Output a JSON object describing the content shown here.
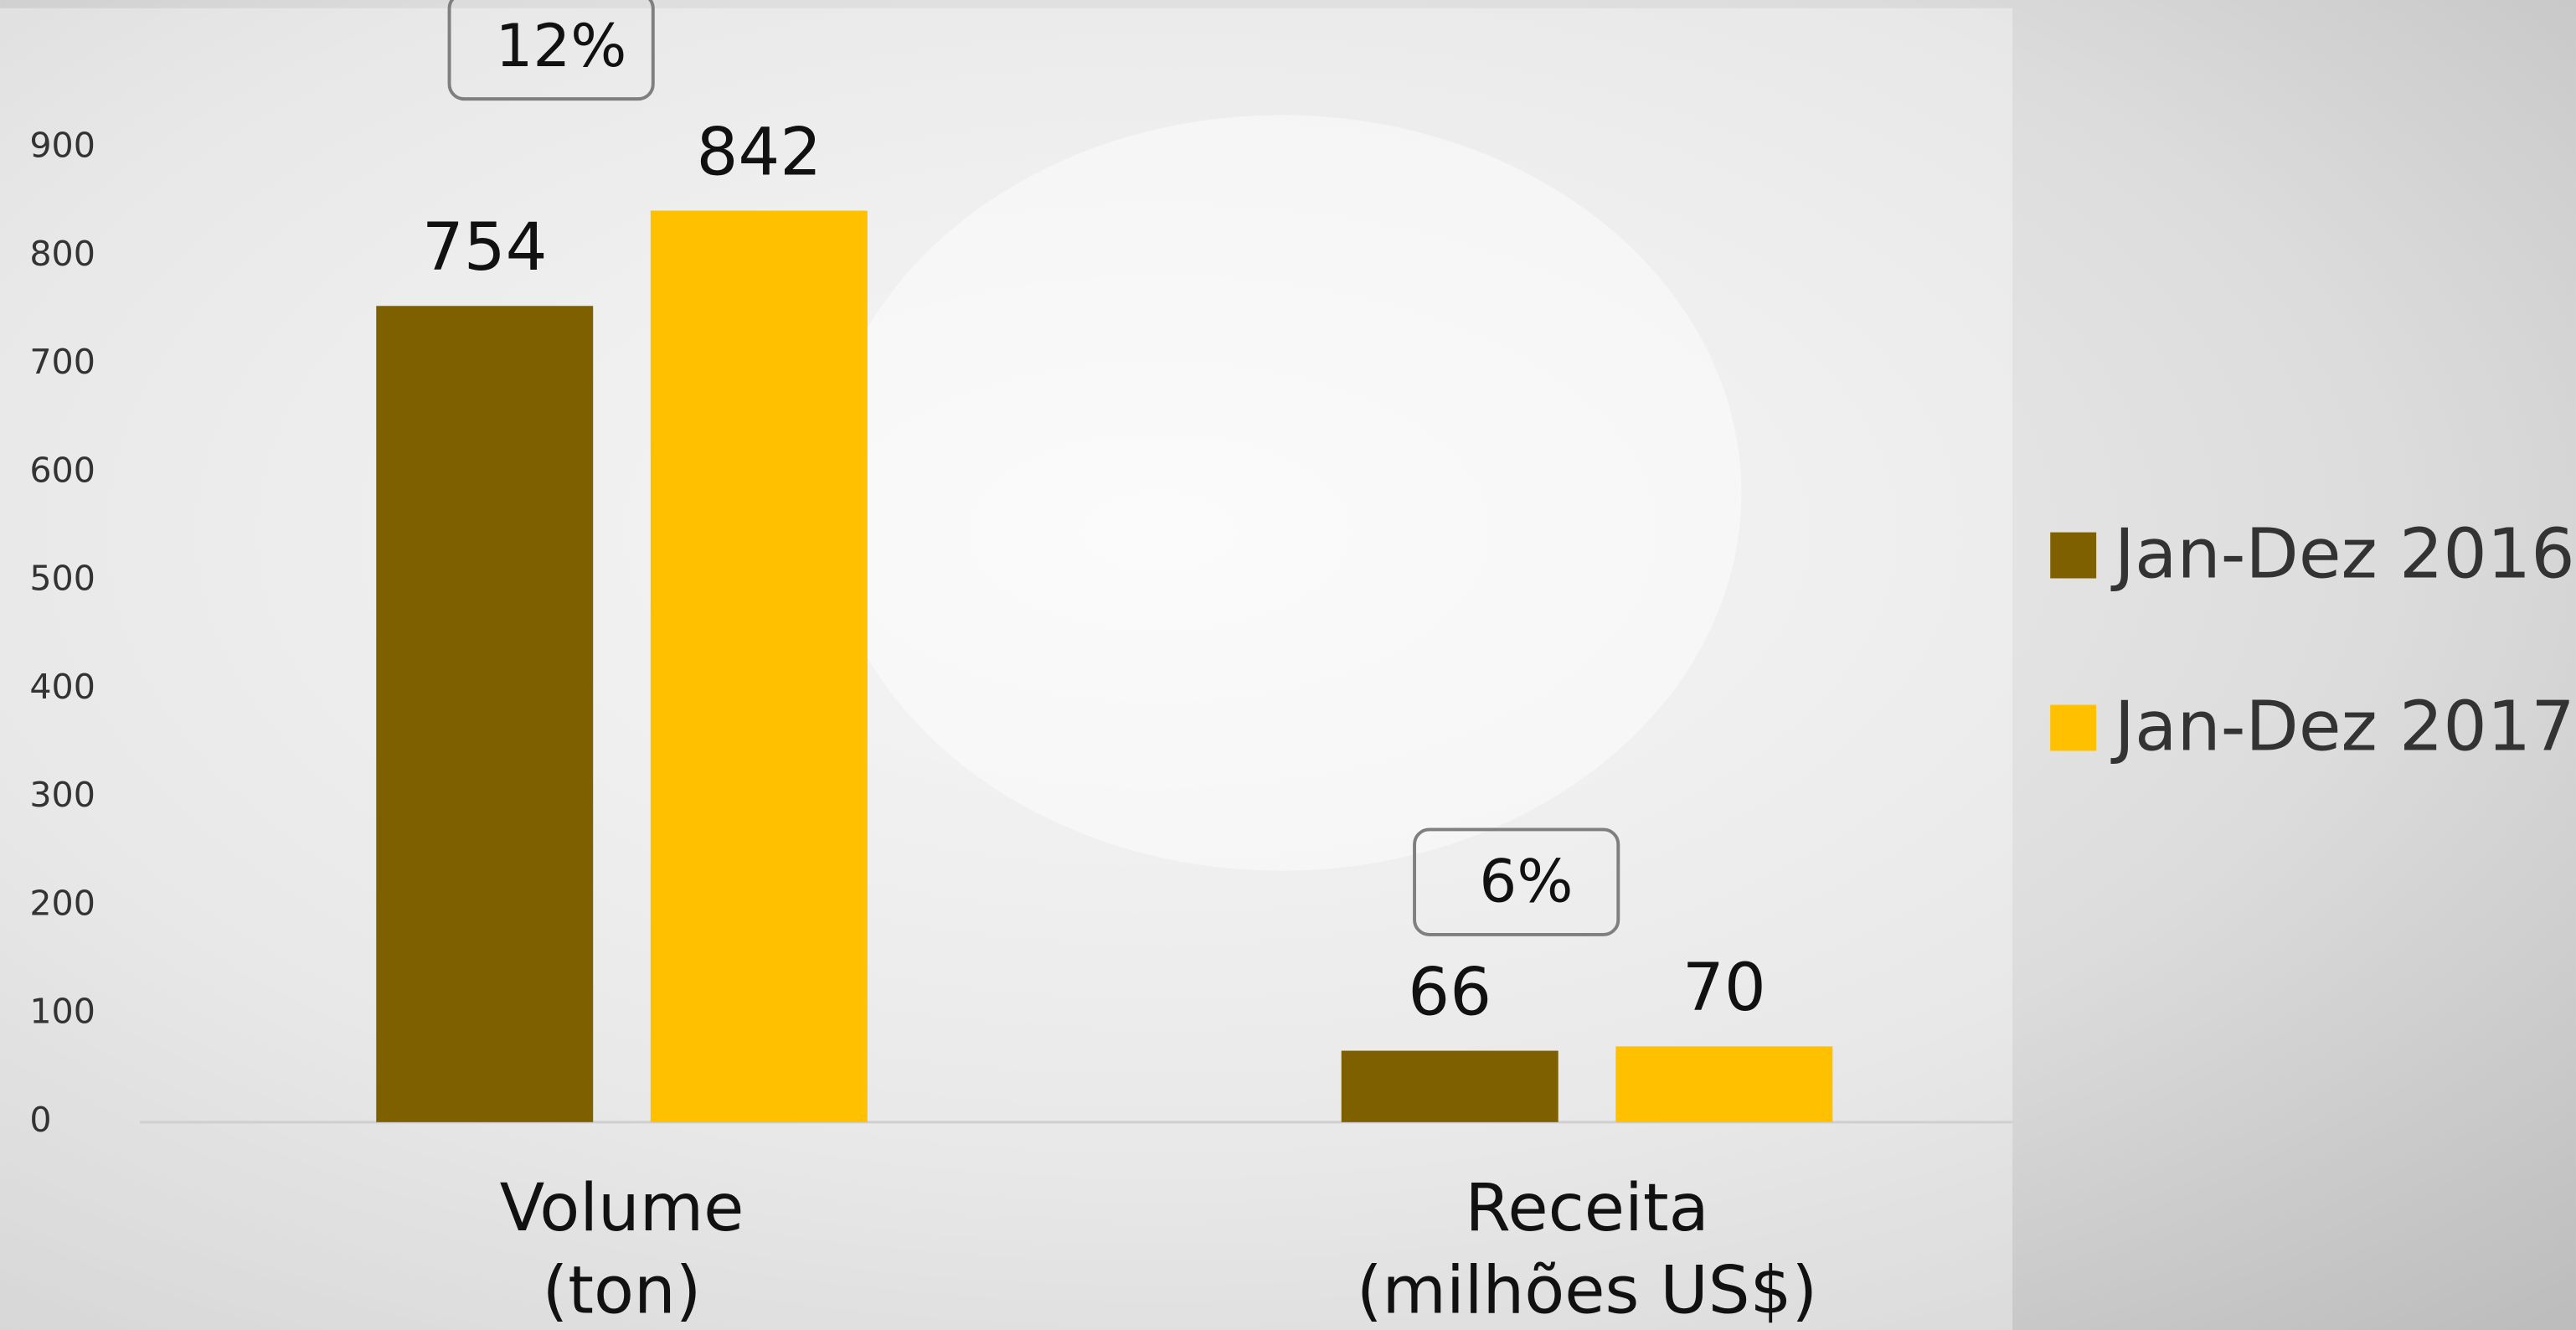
{
  "chart_data": {
    "type": "bar",
    "categories": [
      [
        "Volume",
        "(ton)"
      ],
      [
        "Receita",
        "(milhões US$)"
      ]
    ],
    "series": [
      {
        "name": "Jan-Dez 2016",
        "color": "#7f6000",
        "values": [
          754,
          66
        ]
      },
      {
        "name": "Jan-Dez 2017",
        "color": "#ffc000",
        "values": [
          842,
          70
        ]
      }
    ],
    "annotations": [
      "12%",
      "6%"
    ],
    "ylim": [
      0,
      900
    ],
    "yticks": [
      0,
      100,
      200,
      300,
      400,
      500,
      600,
      700,
      800,
      900
    ],
    "legend": "right"
  }
}
